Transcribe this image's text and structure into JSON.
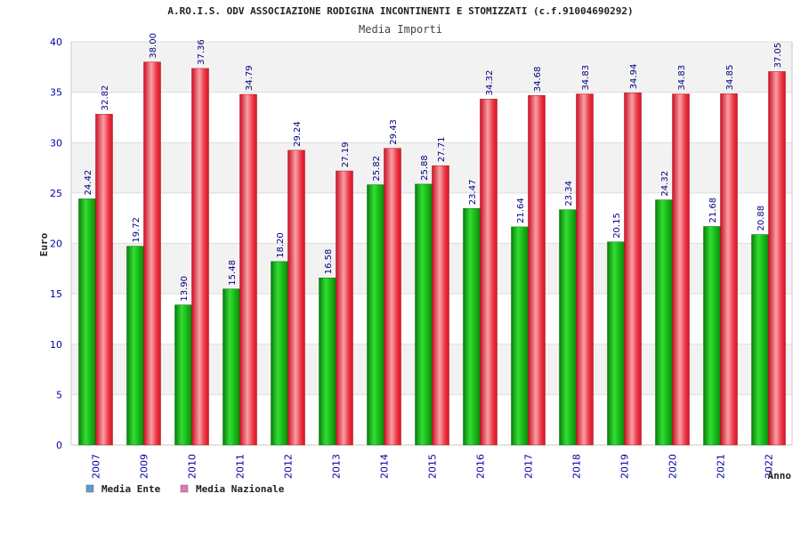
{
  "chart_data": {
    "type": "bar",
    "title": "A.RO.I.S. ODV ASSOCIAZIONE RODIGINA INCONTINENTI E STOMIZZATI (c.f.91004690292)",
    "subtitle": "Media Importi",
    "xlabel": "Anno",
    "ylabel": "Euro",
    "ylim": [
      0,
      40
    ],
    "yticks": [
      "0",
      "5",
      "10",
      "15",
      "20",
      "25",
      "30",
      "35",
      "40"
    ],
    "categories": [
      "2007",
      "2009",
      "2010",
      "2011",
      "2012",
      "2013",
      "2014",
      "2015",
      "2016",
      "2017",
      "2018",
      "2019",
      "2020",
      "2021",
      "2022"
    ],
    "series": [
      {
        "name": "Media Ente",
        "color": "#12b012",
        "values": [
          24.42,
          19.72,
          13.9,
          15.48,
          18.2,
          16.58,
          25.82,
          25.88,
          23.47,
          21.64,
          23.34,
          20.15,
          24.32,
          21.68,
          20.88
        ],
        "labels": [
          "24.42",
          "19.72",
          "13.90",
          "15.48",
          "18.20",
          "16.58",
          "25.82",
          "25.88",
          "23.47",
          "21.64",
          "23.34",
          "20.15",
          "24.32",
          "21.68",
          "20.88"
        ]
      },
      {
        "name": "Media Nazionale",
        "color": "#e8242e",
        "values": [
          32.82,
          38.0,
          37.36,
          34.79,
          29.24,
          27.19,
          29.43,
          27.71,
          34.32,
          34.68,
          34.83,
          34.94,
          34.83,
          34.85,
          37.05
        ],
        "labels": [
          "32.82",
          "38.00",
          "37.36",
          "34.79",
          "29.24",
          "27.19",
          "29.43",
          "27.71",
          "34.32",
          "34.68",
          "34.83",
          "34.94",
          "34.83",
          "34.85",
          "37.05"
        ]
      }
    ],
    "legend": [
      {
        "label": "Media Ente",
        "color": "#5b9bd5"
      },
      {
        "label": "Media Nazionale",
        "color": "#e07bb0"
      }
    ],
    "legend_position": "bottom-left",
    "grid": true
  }
}
